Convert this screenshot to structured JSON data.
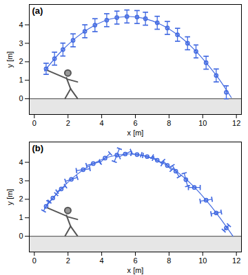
{
  "chart_data": [
    {
      "type": "scatter",
      "title": "(a)",
      "x_label": "x [m]",
      "y_label": "y [m]",
      "xlim": [
        -0.3,
        12.3
      ],
      "ylim": [
        -0.85,
        5.1
      ],
      "xticks": [
        0,
        2,
        4,
        6,
        8,
        10,
        12
      ],
      "yticks": [
        0,
        1,
        2,
        3,
        4
      ],
      "ground_y": 0,
      "color": "#4169e1",
      "marker": "circle",
      "x": [
        0.7,
        1.2,
        1.7,
        2.3,
        3.0,
        3.6,
        4.3,
        4.9,
        5.5,
        6.1,
        6.6,
        7.3,
        7.9,
        8.5,
        9.1,
        9.6,
        10.2,
        10.8,
        11.4
      ],
      "values": [
        1.62,
        2.17,
        2.66,
        3.16,
        3.65,
        3.98,
        4.25,
        4.39,
        4.45,
        4.42,
        4.33,
        4.11,
        3.83,
        3.46,
        3.0,
        2.56,
        1.95,
        1.26,
        0.35
      ],
      "error": [
        0.3,
        0.35,
        0.35,
        0.35,
        0.35,
        0.35,
        0.35,
        0.35,
        0.35,
        0.35,
        0.35,
        0.35,
        0.35,
        0.35,
        0.35,
        0.35,
        0.35,
        0.35,
        0.35
      ],
      "curve_x": [
        0.6,
        1.5,
        2.5,
        3.5,
        4.5,
        5.6,
        6.5,
        7.5,
        8.5,
        9.5,
        10.5,
        11.0,
        11.7
      ],
      "curve_y": [
        1.5,
        2.47,
        3.32,
        3.93,
        4.31,
        4.45,
        4.35,
        4.02,
        3.46,
        2.66,
        1.62,
        1.02,
        0.06
      ]
    },
    {
      "type": "scatter",
      "title": "(b)",
      "x_label": "x [m]",
      "y_label": "y [m]",
      "xlim": [
        -0.3,
        12.3
      ],
      "ylim": [
        -0.85,
        5.1
      ],
      "xticks": [
        0,
        2,
        4,
        6,
        8,
        10,
        12
      ],
      "yticks": [
        0,
        1,
        2,
        3,
        4
      ],
      "ground_y": 0,
      "color": "#4169e1",
      "marker": "circle",
      "x": [
        0.7,
        1.1,
        1.6,
        2.2,
        2.9,
        3.5,
        4.2,
        4.9,
        5.4,
        6.1,
        6.7,
        7.3,
        7.9,
        8.4,
        9.0,
        9.5,
        10.2,
        10.8,
        11.4
      ],
      "values": [
        1.62,
        2.07,
        2.56,
        3.08,
        3.6,
        3.93,
        4.23,
        4.39,
        4.45,
        4.42,
        4.31,
        4.11,
        3.83,
        3.52,
        3.06,
        2.64,
        1.95,
        1.26,
        0.45
      ],
      "error_dx": [
        0.15,
        0.2,
        0.25,
        0.35,
        0.4,
        0.4,
        0.3,
        0.15,
        0.35,
        0.35,
        0.35,
        0.3,
        0.25,
        0.2,
        0.1,
        0.35,
        0.35,
        0.3,
        0.15
      ],
      "error_dy": [
        0.25,
        0.2,
        0.15,
        0.1,
        0.05,
        0.1,
        0.25,
        0.35,
        0.15,
        -0.05,
        -0.1,
        -0.2,
        -0.25,
        -0.3,
        -0.35,
        0.0,
        0.05,
        0.05,
        0.15
      ],
      "curve_x": [
        0.6,
        1.5,
        2.5,
        3.5,
        4.5,
        5.6,
        6.5,
        7.5,
        8.5,
        9.5,
        10.5,
        11.0,
        11.8
      ],
      "curve_y": [
        1.5,
        2.47,
        3.32,
        3.93,
        4.31,
        4.45,
        4.35,
        4.02,
        3.46,
        2.66,
        1.62,
        1.02,
        0.0
      ]
    }
  ]
}
